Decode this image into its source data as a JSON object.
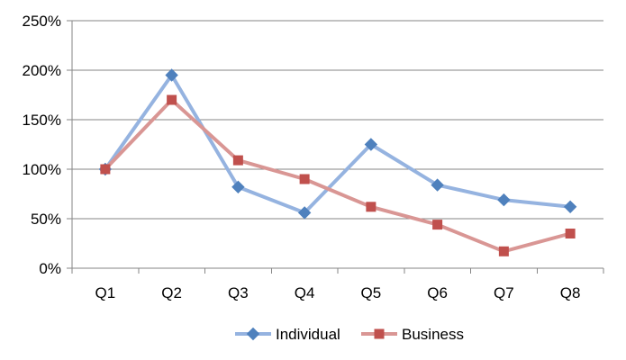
{
  "chart_data": {
    "type": "line",
    "categories": [
      "Q1",
      "Q2",
      "Q3",
      "Q4",
      "Q5",
      "Q6",
      "Q7",
      "Q8"
    ],
    "series": [
      {
        "name": "Individual",
        "values": [
          100,
          195,
          82,
          56,
          125,
          84,
          69,
          62
        ],
        "color": "#4f81bd",
        "line_color": "#95b3e0",
        "marker": "diamond"
      },
      {
        "name": "Business",
        "values": [
          100,
          170,
          109,
          90,
          62,
          44,
          17,
          35
        ],
        "color": "#c0504d",
        "line_color": "#d99694",
        "marker": "square"
      }
    ],
    "yticks": [
      "0%",
      "50%",
      "100%",
      "150%",
      "200%",
      "250%"
    ],
    "ylim": [
      0,
      250
    ],
    "grid": true,
    "legend": "bottom",
    "title": "",
    "xlabel": "",
    "ylabel": ""
  }
}
